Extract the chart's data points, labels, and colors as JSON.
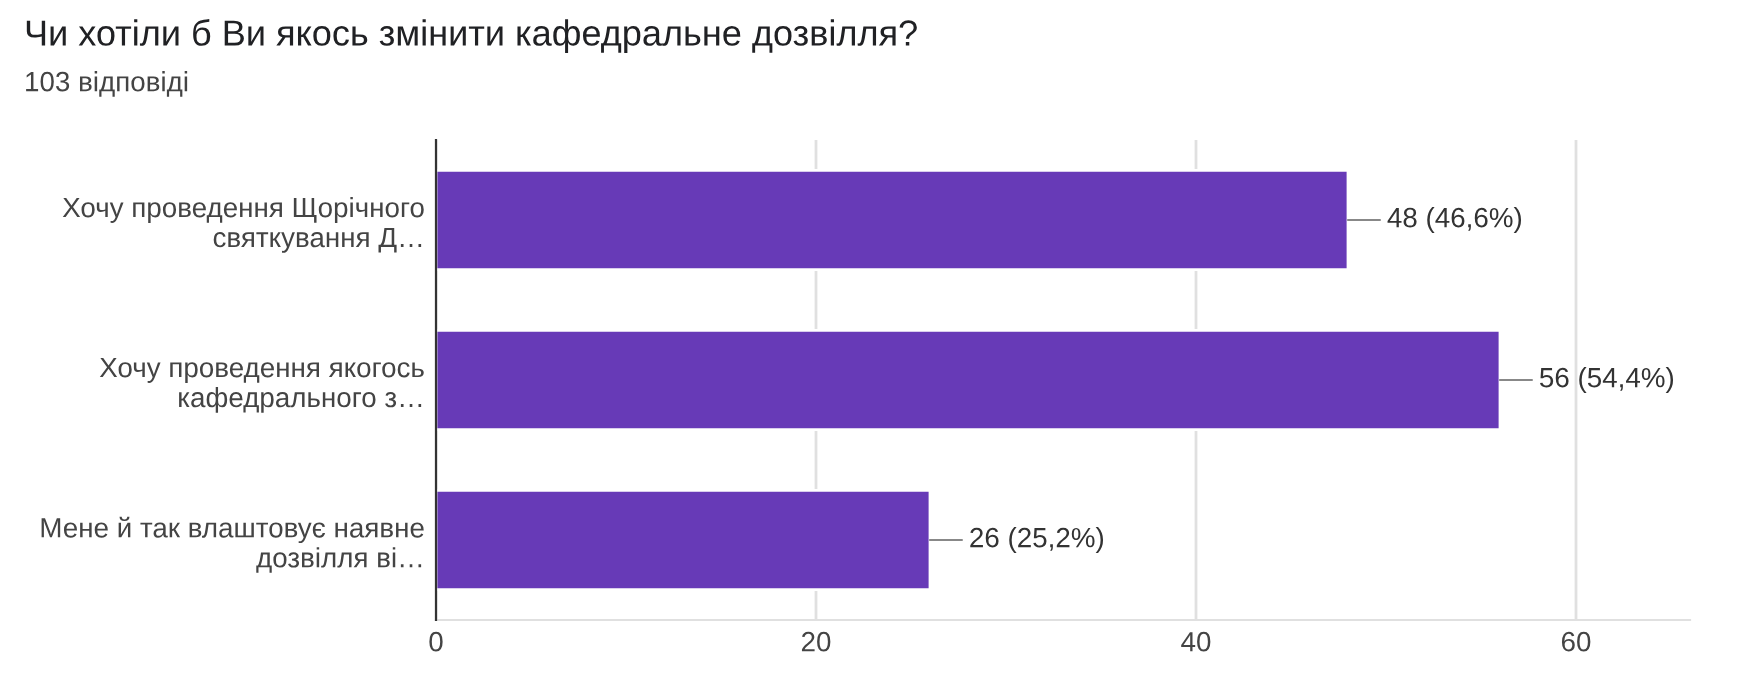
{
  "chart_data": {
    "type": "bar",
    "orientation": "horizontal",
    "title": "Чи хотіли б Ви якось змінити кафедральне дозвілля?",
    "subtitle": "103 відповіді",
    "categories": [
      "Хочу проведення Щорічного\nсвяткування Д…",
      "Хочу проведення якогось\nкафедрального з…",
      "Мене й так влаштовує наявне\nдозвілля ві…"
    ],
    "values": [
      48,
      56,
      26
    ],
    "value_labels": [
      "48 (46,6%)",
      "56 (54,4%)",
      "26 (25,2%)"
    ],
    "color": "#673ab7",
    "xlim": [
      0,
      66
    ],
    "xticks": [
      0,
      20,
      40,
      60
    ],
    "grid": "x",
    "legend": false
  }
}
